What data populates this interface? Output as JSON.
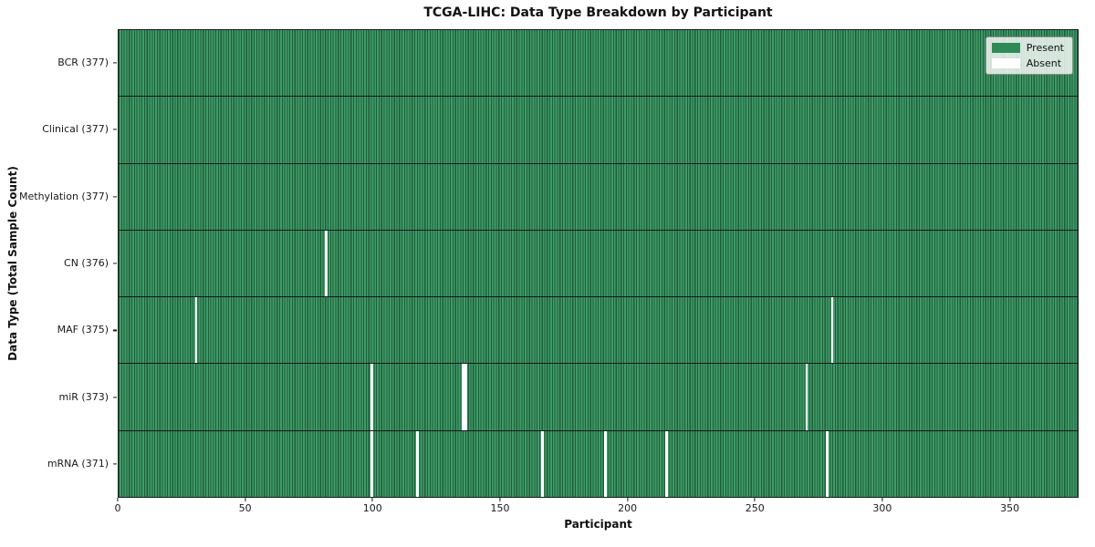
{
  "title": "TCGA-LIHC: Data Type Breakdown by Participant",
  "axes": {
    "xlabel": "Participant",
    "ylabel": "Data Type (Total Sample Count)"
  },
  "legend": {
    "items": [
      {
        "label": "Present",
        "color": "#2e8b57"
      },
      {
        "label": "Absent",
        "color": "#ffffff"
      }
    ]
  },
  "chart_data": {
    "type": "heatmap",
    "title": "TCGA-LIHC: Data Type Breakdown by Participant",
    "xlabel": "Participant",
    "ylabel": "Data Type (Total Sample Count)",
    "xlim": [
      0,
      377
    ],
    "x_ticks": [
      0,
      50,
      100,
      150,
      200,
      250,
      300,
      350
    ],
    "n_participants": 377,
    "grid": false,
    "legend_position": "upper right",
    "colors": {
      "present": "#2e8b57",
      "present_edge": "#1f5c3a",
      "absent": "#ffffff",
      "row_divider": "#17181a"
    },
    "rows": [
      {
        "label": "BCR",
        "count": 377,
        "absent_participants": []
      },
      {
        "label": "Clinical",
        "count": 377,
        "absent_participants": []
      },
      {
        "label": "Methylation",
        "count": 377,
        "absent_participants": []
      },
      {
        "label": "CN",
        "count": 376,
        "absent_participants": [
          81
        ]
      },
      {
        "label": "MAF",
        "count": 375,
        "absent_participants": [
          30,
          280
        ]
      },
      {
        "label": "miR",
        "count": 373,
        "absent_participants": [
          99,
          135,
          136,
          270
        ]
      },
      {
        "label": "mRNA",
        "count": 371,
        "absent_participants": [
          99,
          117,
          166,
          191,
          215,
          278
        ]
      }
    ]
  }
}
